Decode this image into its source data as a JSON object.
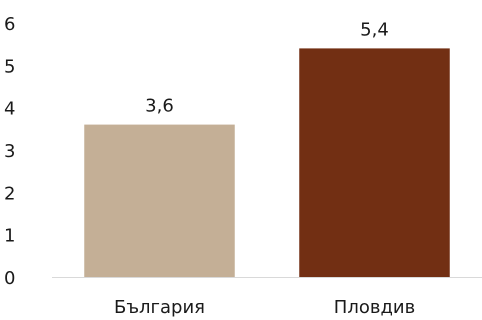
{
  "chart_data": {
    "type": "bar",
    "categories": [
      "България",
      "Пловдив"
    ],
    "values": [
      3.6,
      5.4
    ],
    "value_labels": [
      "3,6",
      "5,4"
    ],
    "colors": [
      "#c4af96",
      "#722f13"
    ],
    "axis_color": "#d9d9d9",
    "ylim": [
      0,
      6
    ],
    "yticks": [
      "0",
      "1",
      "2",
      "3",
      "4",
      "5",
      "6"
    ],
    "grid": false,
    "legend": "none",
    "title": "",
    "xlabel": "",
    "ylabel": ""
  }
}
